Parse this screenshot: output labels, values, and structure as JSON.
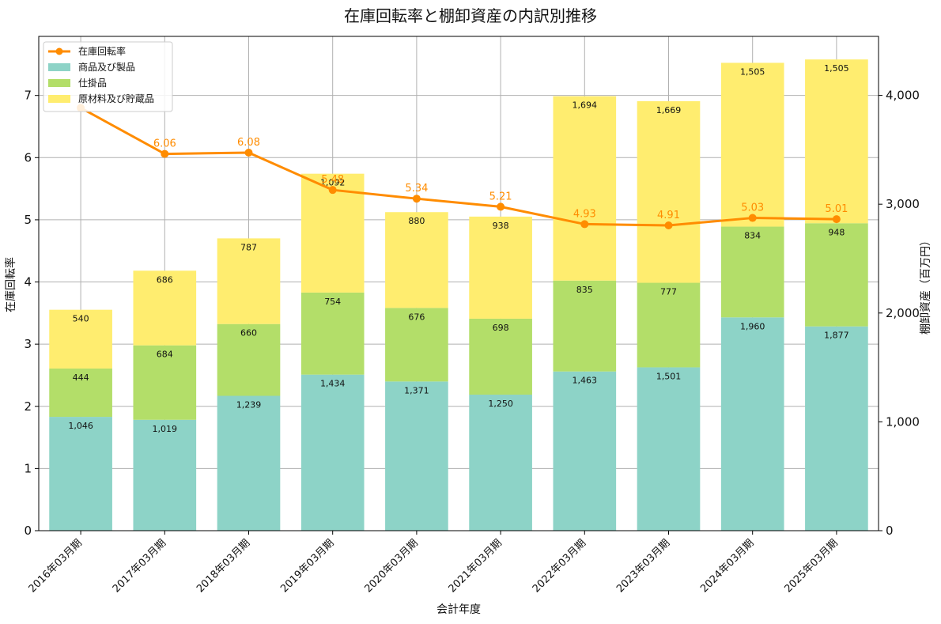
{
  "chart_data": {
    "type": "bar",
    "title": "在庫回転率と棚卸資産の内訳別推移",
    "xlabel": "会計年度",
    "ylabel_left": "在庫回転率",
    "ylabel_right": "棚卸資産（百万円）",
    "categories": [
      "2016年03月期",
      "2017年03月期",
      "2018年03月期",
      "2019年03月期",
      "2020年03月期",
      "2021年03月期",
      "2022年03月期",
      "2023年03月期",
      "2024年03月期",
      "2025年03月期"
    ],
    "ylim_left": [
      0,
      7.95
    ],
    "ylim_right": [
      0,
      4542
    ],
    "left_ticks": [
      0,
      1,
      2,
      3,
      4,
      5,
      6,
      7
    ],
    "right_ticks": [
      0,
      1000,
      2000,
      3000,
      4000
    ],
    "right_tick_labels": [
      "0",
      "1,000",
      "2,000",
      "3,000",
      "4,000"
    ],
    "grid": true,
    "legend_position": "top-left",
    "series": [
      {
        "name": "商品及び製品",
        "kind": "bar",
        "axis": "right",
        "color": "#8dd3c7",
        "values": [
          1046,
          1019,
          1239,
          1434,
          1371,
          1250,
          1463,
          1501,
          1960,
          1877
        ],
        "labels": [
          "1,046",
          "1,019",
          "1,239",
          "1,434",
          "1,371",
          "1,250",
          "1,463",
          "1,501",
          "1,960",
          "1,877"
        ]
      },
      {
        "name": "仕掛品",
        "kind": "bar",
        "axis": "right",
        "color": "#b3de69",
        "values": [
          444,
          684,
          660,
          754,
          676,
          698,
          835,
          777,
          834,
          948
        ],
        "labels": [
          "444",
          "684",
          "660",
          "754",
          "676",
          "698",
          "835",
          "777",
          "834",
          "948"
        ]
      },
      {
        "name": "原材料及び貯蔵品",
        "kind": "bar",
        "axis": "right",
        "color": "#ffed6f",
        "values": [
          540,
          686,
          787,
          1092,
          880,
          938,
          1694,
          1669,
          1505,
          1505
        ],
        "labels": [
          "540",
          "686",
          "787",
          "1,092",
          "880",
          "938",
          "1,694",
          "1,669",
          "1,505",
          "1,505"
        ]
      },
      {
        "name": "在庫回転率",
        "kind": "line",
        "axis": "left",
        "color": "#ff8c00",
        "values": [
          6.8,
          6.06,
          6.08,
          5.48,
          5.34,
          5.21,
          4.93,
          4.91,
          5.03,
          5.01
        ],
        "labels": [
          "",
          "6.06",
          "6.08",
          "5.48",
          "5.34",
          "5.21",
          "4.93",
          "4.91",
          "5.03",
          "5.01"
        ]
      }
    ]
  }
}
